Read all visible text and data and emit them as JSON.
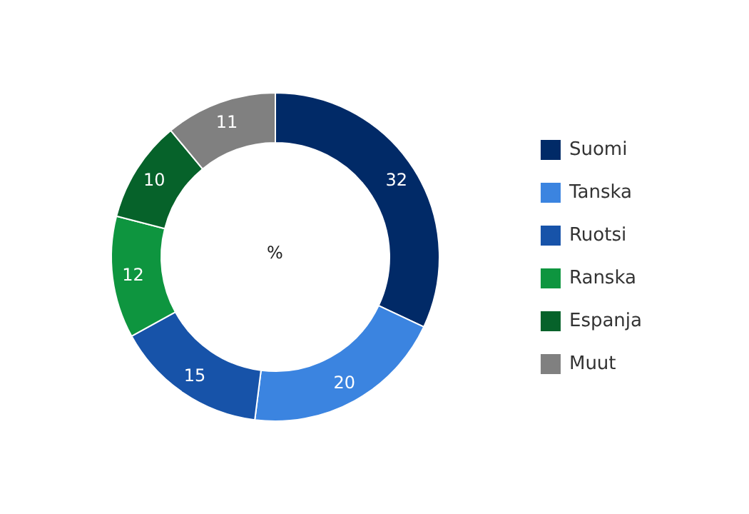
{
  "chart_data": {
    "type": "donut",
    "annotations": [
      "%"
    ],
    "categories": [
      "Suomi",
      "Tanska",
      "Ruotsi",
      "Ranska",
      "Espanja",
      "Muut"
    ],
    "values": [
      32,
      20,
      15,
      12,
      10,
      11
    ],
    "colors": [
      "#012a67",
      "#3b84e0",
      "#1753a9",
      "#0e953f",
      "#06622a",
      "#808080"
    ],
    "data_labels": true,
    "legend": "right"
  }
}
